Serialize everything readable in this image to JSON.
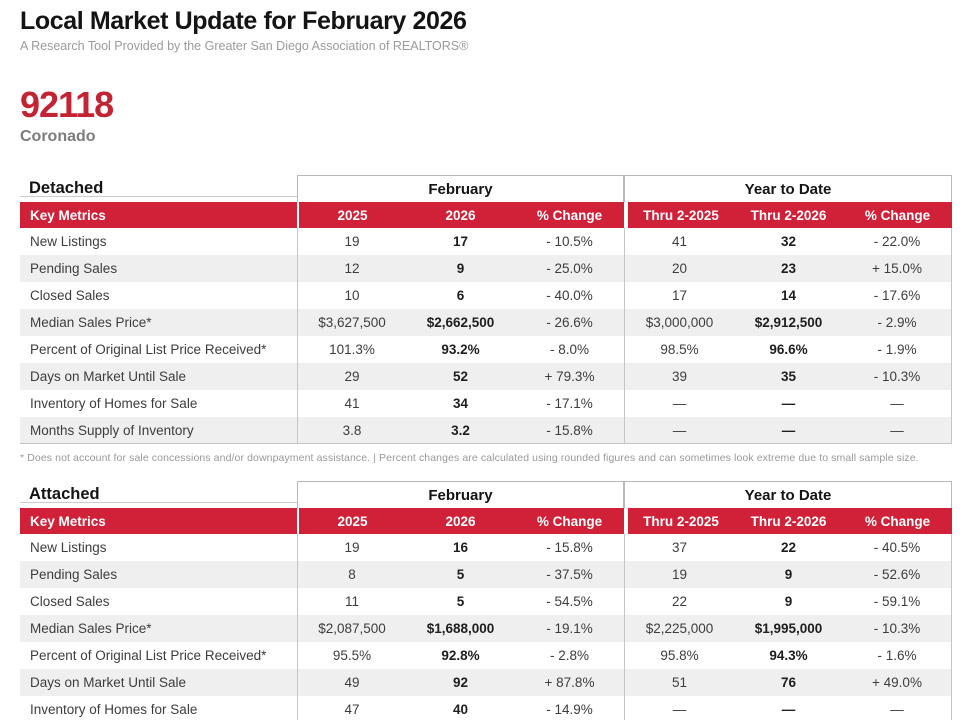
{
  "header": {
    "title": "Local Market Update for February 2026",
    "subtitle": "A Research Tool Provided by the Greater San Diego Association of REALTORS®",
    "zip": "92118",
    "area": "Coronado"
  },
  "colors": {
    "accent_red": "#D02139",
    "zip_red": "#C32433",
    "row_alt": "#EFEFEF",
    "border_gray": "#C5C5C5"
  },
  "table_headers": {
    "metrics_label": "Key Metrics",
    "group_february": "February",
    "group_year_to_date": "Year to Date",
    "cols": [
      "2025",
      "2026",
      "% Change",
      "Thru 2-2025",
      "Thru 2-2026",
      "% Change"
    ]
  },
  "footnote": "* Does not account for sale concessions and/or downpayment assistance. | Percent changes are calculated using rounded figures and can sometimes look extreme due to small sample size.",
  "tables": [
    {
      "section": "Detached",
      "rows": [
        {
          "metric": "New Listings",
          "values": [
            "19",
            "17",
            "- 10.5%",
            "41",
            "32",
            "- 22.0%"
          ]
        },
        {
          "metric": "Pending Sales",
          "values": [
            "12",
            "9",
            "- 25.0%",
            "20",
            "23",
            "+ 15.0%"
          ]
        },
        {
          "metric": "Closed Sales",
          "values": [
            "10",
            "6",
            "- 40.0%",
            "17",
            "14",
            "- 17.6%"
          ]
        },
        {
          "metric": "Median Sales Price*",
          "values": [
            "$3,627,500",
            "$2,662,500",
            "- 26.6%",
            "$3,000,000",
            "$2,912,500",
            "- 2.9%"
          ]
        },
        {
          "metric": "Percent of Original List Price Received*",
          "values": [
            "101.3%",
            "93.2%",
            "- 8.0%",
            "98.5%",
            "96.6%",
            "- 1.9%"
          ]
        },
        {
          "metric": "Days on Market Until Sale",
          "values": [
            "29",
            "52",
            "+ 79.3%",
            "39",
            "35",
            "- 10.3%"
          ]
        },
        {
          "metric": "Inventory of Homes for Sale",
          "values": [
            "41",
            "34",
            "- 17.1%",
            "—",
            "—",
            "—"
          ]
        },
        {
          "metric": "Months Supply of Inventory",
          "values": [
            "3.8",
            "3.2",
            "- 15.8%",
            "—",
            "—",
            "—"
          ]
        }
      ]
    },
    {
      "section": "Attached",
      "rows": [
        {
          "metric": "New Listings",
          "values": [
            "19",
            "16",
            "- 15.8%",
            "37",
            "22",
            "- 40.5%"
          ]
        },
        {
          "metric": "Pending Sales",
          "values": [
            "8",
            "5",
            "- 37.5%",
            "19",
            "9",
            "- 52.6%"
          ]
        },
        {
          "metric": "Closed Sales",
          "values": [
            "11",
            "5",
            "- 54.5%",
            "22",
            "9",
            "- 59.1%"
          ]
        },
        {
          "metric": "Median Sales Price*",
          "values": [
            "$2,087,500",
            "$1,688,000",
            "- 19.1%",
            "$2,225,000",
            "$1,995,000",
            "- 10.3%"
          ]
        },
        {
          "metric": "Percent of Original List Price Received*",
          "values": [
            "95.5%",
            "92.8%",
            "- 2.8%",
            "95.8%",
            "94.3%",
            "- 1.6%"
          ]
        },
        {
          "metric": "Days on Market Until Sale",
          "values": [
            "49",
            "92",
            "+ 87.8%",
            "51",
            "76",
            "+ 49.0%"
          ]
        },
        {
          "metric": "Inventory of Homes for Sale",
          "values": [
            "47",
            "40",
            "- 14.9%",
            "—",
            "—",
            "—"
          ]
        }
      ]
    }
  ]
}
